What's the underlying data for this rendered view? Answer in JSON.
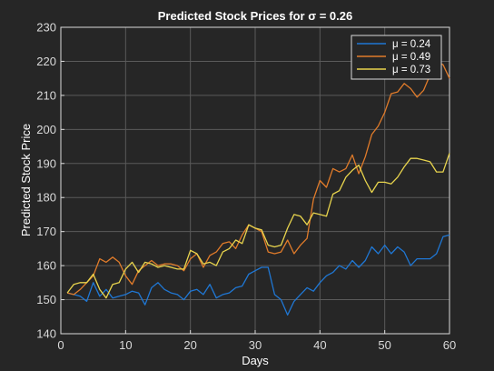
{
  "chart_data": {
    "type": "line",
    "title": "Predicted Stock Prices for σ = 0.26",
    "xlabel": "Days",
    "ylabel": "Predicted Stock Price",
    "xlim": [
      0,
      60
    ],
    "ylim": [
      140,
      230
    ],
    "xticks": [
      0,
      10,
      20,
      30,
      40,
      50,
      60
    ],
    "yticks": [
      140,
      150,
      160,
      170,
      180,
      190,
      200,
      210,
      220,
      230
    ],
    "grid": true,
    "legend_position": "top-right",
    "x": [
      1,
      2,
      3,
      4,
      5,
      6,
      7,
      8,
      9,
      10,
      11,
      12,
      13,
      14,
      15,
      16,
      17,
      18,
      19,
      20,
      21,
      22,
      23,
      24,
      25,
      26,
      27,
      28,
      29,
      30,
      31,
      32,
      33,
      34,
      35,
      36,
      37,
      38,
      39,
      40,
      41,
      42,
      43,
      44,
      45,
      46,
      47,
      48,
      49,
      50,
      51,
      52,
      53,
      54,
      55,
      56,
      57,
      58,
      59,
      60
    ],
    "series": [
      {
        "name": "μ = 0.24",
        "color": "#1f77d4",
        "values": [
          152,
          151.5,
          151,
          149.5,
          155,
          151,
          153,
          150.5,
          151,
          151.5,
          152.5,
          152,
          148.5,
          153.5,
          155,
          153,
          152,
          151.5,
          150,
          152.5,
          153,
          151.5,
          154.5,
          150.5,
          151.5,
          152,
          153.5,
          154,
          157.5,
          158.5,
          159.5,
          159.5,
          151.5,
          150,
          145.5,
          149.5,
          151.5,
          153.5,
          152.5,
          155,
          157,
          158,
          160,
          159,
          161.5,
          159.5,
          161.5,
          165.5,
          163.5,
          166,
          163.5,
          165.5,
          164,
          160,
          162,
          162,
          162,
          163.5,
          168.5,
          169
        ]
      },
      {
        "name": "μ = 0.49",
        "color": "#e07b2a",
        "values": [
          152,
          151.5,
          153,
          155,
          157,
          162,
          161,
          162.5,
          161,
          157,
          154.5,
          158.5,
          160,
          161.5,
          160,
          160.5,
          160.5,
          160,
          158.5,
          162,
          163.5,
          159.5,
          163,
          164,
          166.5,
          167,
          165,
          169,
          172,
          171,
          170,
          164,
          163.5,
          164,
          167.5,
          163.5,
          166,
          168,
          179.5,
          185,
          183,
          188.5,
          187.5,
          188.5,
          192.5,
          187,
          192,
          198.5,
          201,
          205,
          210.5,
          211,
          213.5,
          212,
          209.5,
          211.5,
          216,
          220,
          219,
          215
        ]
      },
      {
        "name": "μ = 0.73",
        "color": "#e8d44d",
        "values": [
          152,
          154.5,
          155,
          155,
          157.5,
          153,
          150.5,
          154.5,
          155,
          159,
          161,
          158,
          161,
          160.5,
          159.5,
          160,
          159.5,
          159,
          159,
          164.5,
          163.5,
          160.5,
          161,
          160,
          164,
          165,
          167.5,
          166.5,
          172,
          171,
          170.5,
          166,
          165.5,
          166,
          171,
          175,
          174.5,
          172,
          175.5,
          175,
          174.5,
          181,
          182,
          186,
          188,
          189.5,
          185,
          181.5,
          184.5,
          184.5,
          184,
          186,
          189,
          191.5,
          191.5,
          191,
          190.5,
          187.5,
          187.5,
          193
        ]
      }
    ]
  }
}
